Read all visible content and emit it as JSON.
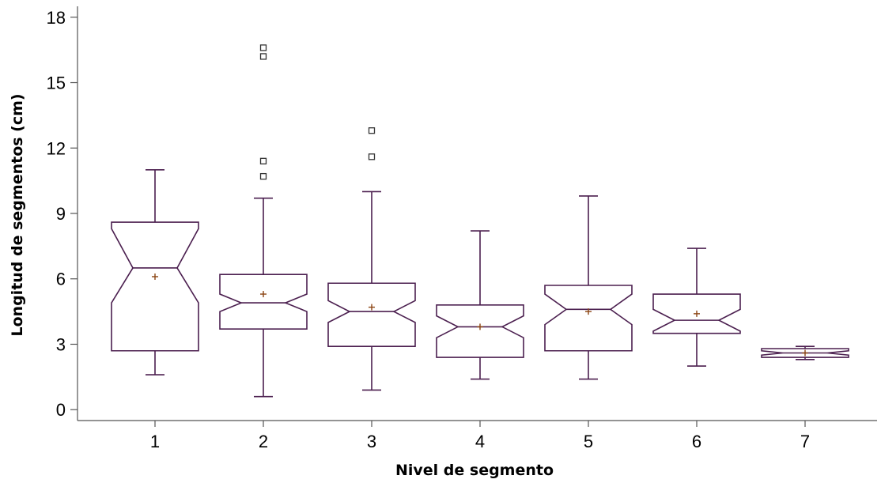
{
  "chart_data": {
    "type": "box",
    "title": "",
    "xlabel": "Nivel de segmento",
    "ylabel": "Longitud de segmentos (cm)",
    "categories": [
      "1",
      "2",
      "3",
      "4",
      "5",
      "6",
      "7"
    ],
    "ylim": [
      -0.5,
      18.5
    ],
    "yticks": [
      0,
      3,
      6,
      9,
      12,
      15,
      18
    ],
    "notched": true,
    "show_mean": true,
    "grid": false,
    "boxes": [
      {
        "category": "1",
        "whisker_low": 1.6,
        "q1": 2.7,
        "median": 6.5,
        "q3": 8.6,
        "whisker_high": 11.0,
        "mean": 6.1,
        "notch_low": 4.9,
        "notch_high": 8.3,
        "outliers": []
      },
      {
        "category": "2",
        "whisker_low": 0.6,
        "q1": 3.7,
        "median": 4.9,
        "q3": 6.2,
        "whisker_high": 9.7,
        "mean": 5.3,
        "notch_low": 4.5,
        "notch_high": 5.3,
        "outliers": [
          10.7,
          11.4,
          16.2,
          16.6
        ]
      },
      {
        "category": "3",
        "whisker_low": 0.9,
        "q1": 2.9,
        "median": 4.5,
        "q3": 5.8,
        "whisker_high": 10.0,
        "mean": 4.7,
        "notch_low": 4.0,
        "notch_high": 5.0,
        "outliers": [
          11.6,
          12.8
        ]
      },
      {
        "category": "4",
        "whisker_low": 1.4,
        "q1": 2.4,
        "median": 3.8,
        "q3": 4.8,
        "whisker_high": 8.2,
        "mean": 3.8,
        "notch_low": 3.3,
        "notch_high": 4.3,
        "outliers": []
      },
      {
        "category": "5",
        "whisker_low": 1.4,
        "q1": 2.7,
        "median": 4.6,
        "q3": 5.7,
        "whisker_high": 9.8,
        "mean": 4.5,
        "notch_low": 3.9,
        "notch_high": 5.3,
        "outliers": []
      },
      {
        "category": "6",
        "whisker_low": 2.0,
        "q1": 3.5,
        "median": 4.1,
        "q3": 5.3,
        "whisker_high": 7.4,
        "mean": 4.4,
        "notch_low": 3.6,
        "notch_high": 4.6,
        "outliers": []
      },
      {
        "category": "7",
        "whisker_low": 2.3,
        "q1": 2.4,
        "median": 2.6,
        "q3": 2.8,
        "whisker_high": 2.9,
        "mean": 2.6,
        "notch_low": 2.5,
        "notch_high": 2.7,
        "outliers": []
      }
    ],
    "colors": {
      "box": "#4b1f4f",
      "axis": "#555555",
      "mean_marker": "#8b4513",
      "outlier": "#333333",
      "text": "#000000"
    }
  }
}
